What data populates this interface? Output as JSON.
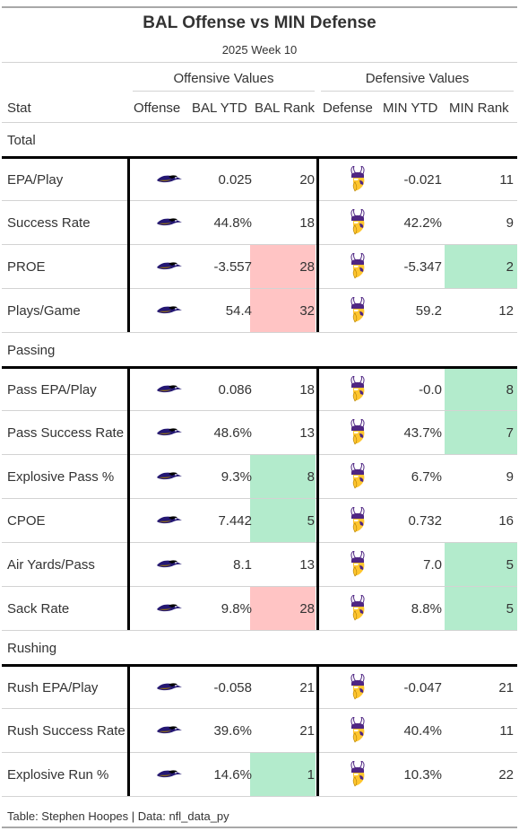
{
  "title": "BAL Offense vs MIN Defense",
  "subtitle": "2025 Week 10",
  "spanners": {
    "offense": "Offensive Values",
    "defense": "Defensive Values"
  },
  "columns": {
    "stat": "Stat",
    "offense": "Offense",
    "bal_ytd": "BAL YTD",
    "bal_rank": "BAL Rank",
    "defense": "Defense",
    "min_ytd": "MIN YTD",
    "min_rank": "MIN Rank"
  },
  "colors": {
    "good": "#b3ebcc",
    "bad": "#ffc4c4",
    "ravens_purple": "#241773",
    "vikings_purple": "#4f2683",
    "vikings_gold": "#ffc62f"
  },
  "groups": [
    {
      "label": "Total",
      "rows": [
        {
          "stat": "EPA/Play",
          "bal_ytd": "0.025",
          "bal_rank": "20",
          "bal_rank_color": "",
          "min_ytd": "-0.021",
          "min_rank": "11",
          "min_rank_color": ""
        },
        {
          "stat": "Success Rate",
          "bal_ytd": "44.8%",
          "bal_rank": "18",
          "bal_rank_color": "",
          "min_ytd": "42.2%",
          "min_rank": "9",
          "min_rank_color": ""
        },
        {
          "stat": "PROE",
          "bal_ytd": "-3.557",
          "bal_rank": "28",
          "bal_rank_color": "bad",
          "min_ytd": "-5.347",
          "min_rank": "2",
          "min_rank_color": "good"
        },
        {
          "stat": "Plays/Game",
          "bal_ytd": "54.4",
          "bal_rank": "32",
          "bal_rank_color": "bad",
          "min_ytd": "59.2",
          "min_rank": "12",
          "min_rank_color": ""
        }
      ]
    },
    {
      "label": "Passing",
      "rows": [
        {
          "stat": "Pass EPA/Play",
          "bal_ytd": "0.086",
          "bal_rank": "18",
          "bal_rank_color": "",
          "min_ytd": "-0.0",
          "min_rank": "8",
          "min_rank_color": "good"
        },
        {
          "stat": "Pass Success Rate",
          "bal_ytd": "48.6%",
          "bal_rank": "13",
          "bal_rank_color": "",
          "min_ytd": "43.7%",
          "min_rank": "7",
          "min_rank_color": "good"
        },
        {
          "stat": "Explosive Pass %",
          "bal_ytd": "9.3%",
          "bal_rank": "8",
          "bal_rank_color": "good",
          "min_ytd": "6.7%",
          "min_rank": "9",
          "min_rank_color": ""
        },
        {
          "stat": "CPOE",
          "bal_ytd": "7.442",
          "bal_rank": "5",
          "bal_rank_color": "good",
          "min_ytd": "0.732",
          "min_rank": "16",
          "min_rank_color": ""
        },
        {
          "stat": "Air Yards/Pass",
          "bal_ytd": "8.1",
          "bal_rank": "13",
          "bal_rank_color": "",
          "min_ytd": "7.0",
          "min_rank": "5",
          "min_rank_color": "good"
        },
        {
          "stat": "Sack Rate",
          "bal_ytd": "9.8%",
          "bal_rank": "28",
          "bal_rank_color": "bad",
          "min_ytd": "8.8%",
          "min_rank": "5",
          "min_rank_color": "good"
        }
      ]
    },
    {
      "label": "Rushing",
      "rows": [
        {
          "stat": "Rush EPA/Play",
          "bal_ytd": "-0.058",
          "bal_rank": "21",
          "bal_rank_color": "",
          "min_ytd": "-0.047",
          "min_rank": "21",
          "min_rank_color": ""
        },
        {
          "stat": "Rush Success Rate",
          "bal_ytd": "39.6%",
          "bal_rank": "21",
          "bal_rank_color": "",
          "min_ytd": "40.4%",
          "min_rank": "11",
          "min_rank_color": ""
        },
        {
          "stat": "Explosive Run %",
          "bal_ytd": "14.6%",
          "bal_rank": "1",
          "bal_rank_color": "good",
          "min_ytd": "10.3%",
          "min_rank": "22",
          "min_rank_color": ""
        }
      ]
    }
  ],
  "source": "Table: Stephen Hoopes | Data: nfl_data_py"
}
